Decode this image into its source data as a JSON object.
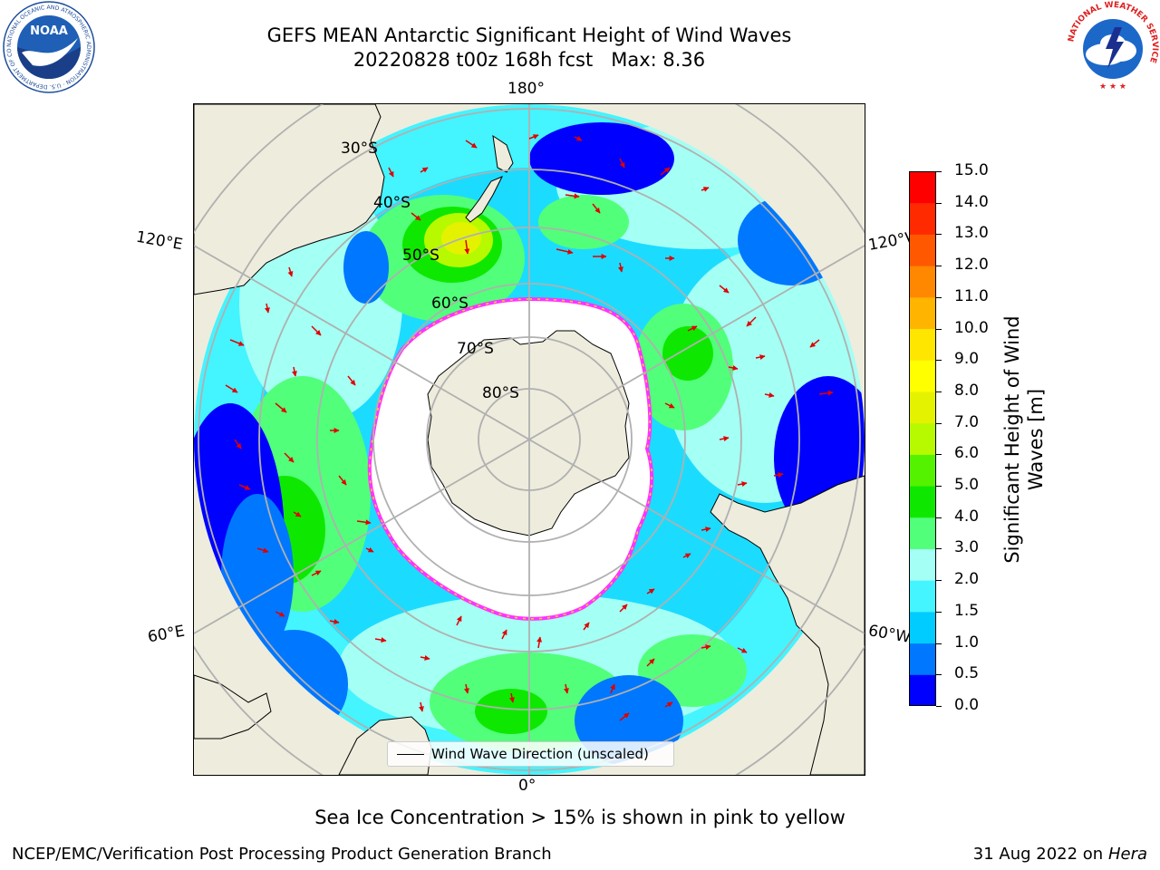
{
  "header": {
    "title_line1": "GEFS MEAN Antarctic Significant Height of Wind Waves",
    "title_line2": "20220828 t00z 168h fcst   Max: 8.36"
  },
  "logos": {
    "noaa": {
      "icon": "noaa-logo",
      "text": "NOAA",
      "ring_text": "NATIONAL OCEANIC AND ATMOSPHERIC ADMINISTRATION · U.S. DEPARTMENT OF COMMERCE"
    },
    "nws": {
      "icon": "nws-logo",
      "ring_text": "NATIONAL WEATHER SERVICE"
    }
  },
  "map": {
    "projection": "south-polar-stereographic",
    "longitude_labels": {
      "top": "180°",
      "bottom": "0°",
      "left_upper": "120°E",
      "left_lower": "60°E",
      "right_upper": "120°W",
      "right_lower": "60°W"
    },
    "latitude_labels": [
      "30°S",
      "40°S",
      "50°S",
      "60°S",
      "70°S",
      "80°S"
    ],
    "legend_label": "Wind Wave Direction (unscaled)",
    "colors": {
      "land": "#eeecdd",
      "grid": "#b0b0b0",
      "ice_edge": "#ff33ff",
      "ice_inner": "#ffcc33",
      "arrow": "#e00000"
    }
  },
  "colorbar": {
    "title": "Significant Height of Wind Waves [m]",
    "title_line1": "Significant Height of Wind",
    "title_line2": "Waves [m]",
    "ticks": [
      "0.0",
      "0.5",
      "1.0",
      "1.5",
      "2.0",
      "3.0",
      "4.0",
      "5.0",
      "6.0",
      "7.0",
      "8.0",
      "9.0",
      "10.0",
      "11.0",
      "12.0",
      "13.0",
      "14.0",
      "15.0"
    ],
    "colors": [
      "#0000ff",
      "#0077ff",
      "#00ccff",
      "#44f4ff",
      "#a4fff4",
      "#52ff7a",
      "#0ee800",
      "#55f200",
      "#b7fa00",
      "#e4f200",
      "#ffff00",
      "#ffe600",
      "#ffb400",
      "#ff8800",
      "#ff5800",
      "#ff2a00",
      "#ff0000"
    ]
  },
  "footer": {
    "note": "Sea Ice Concentration > 15% is shown in pink to yellow",
    "credit": "NCEP/EMC/Verification Post Processing Product Generation Branch",
    "date": "31 Aug 2022 on",
    "machine": "Hera"
  }
}
